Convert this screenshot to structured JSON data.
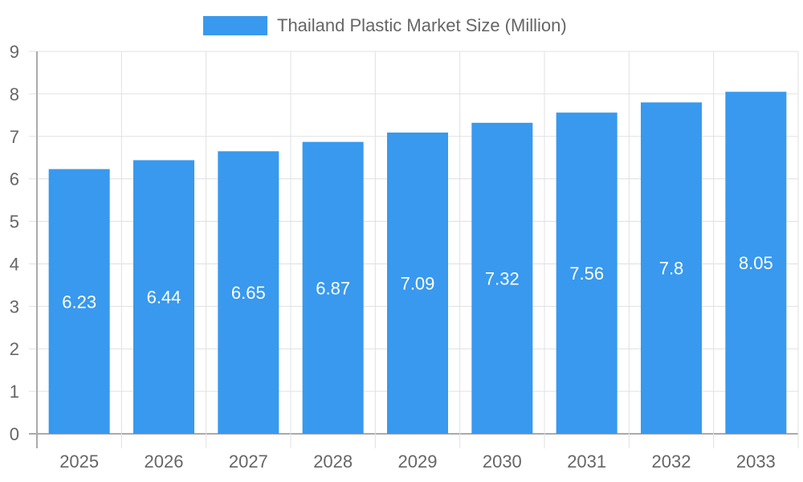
{
  "chart_data": {
    "type": "bar",
    "title": "",
    "legend": [
      "Thailand Plastic Market Size (Million)"
    ],
    "legend_position": "top",
    "categories": [
      "2025",
      "2026",
      "2027",
      "2028",
      "2029",
      "2030",
      "2031",
      "2032",
      "2033"
    ],
    "series": [
      {
        "name": "Thailand Plastic Market Size (Million)",
        "values": [
          6.23,
          6.44,
          6.65,
          6.87,
          7.09,
          7.32,
          7.56,
          7.8,
          8.05
        ],
        "color": "#3899ee"
      }
    ],
    "data_labels": [
      "6.23",
      "6.44",
      "6.65",
      "6.87",
      "7.09",
      "7.32",
      "7.56",
      "7.8",
      "8.05"
    ],
    "xlabel": "",
    "ylabel": "",
    "ylim": [
      0,
      9
    ],
    "yticks": [
      "0",
      "1",
      "2",
      "3",
      "4",
      "5",
      "6",
      "7",
      "8",
      "9"
    ],
    "grid": true
  },
  "legend": {
    "label": "Thailand Plastic Market Size (Million)",
    "color": "#3899ee"
  }
}
